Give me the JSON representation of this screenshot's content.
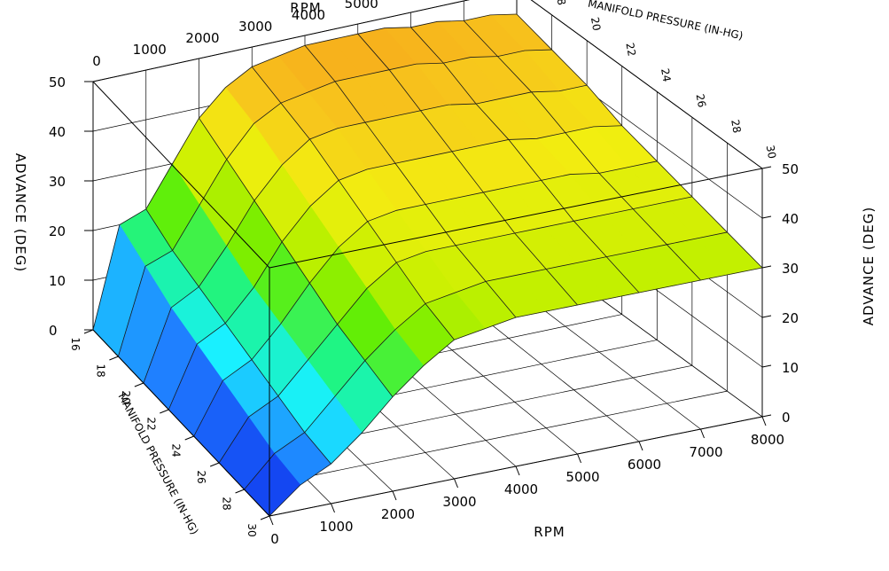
{
  "chart_data": {
    "type": "surface3d",
    "title": "",
    "x_axis": {
      "label": "RPM",
      "range": [
        0,
        8000
      ],
      "ticks": [
        "0",
        "1000",
        "2000",
        "3000",
        "4000",
        "5000",
        "6000",
        "7000",
        "8000"
      ]
    },
    "y_axis": {
      "label": "MANIFOLD PRESSURE (IN-HG)",
      "range": [
        16,
        30
      ],
      "ticks": [
        "16",
        "18",
        "20",
        "22",
        "24",
        "26",
        "28",
        "30"
      ]
    },
    "z_axis": {
      "label": "ADVANCE (DEG)",
      "range": [
        0,
        50
      ],
      "ticks": [
        "0",
        "10",
        "20",
        "30",
        "40",
        "50"
      ]
    },
    "rpm": [
      0,
      500,
      1000,
      1500,
      2000,
      2500,
      3000,
      3500,
      4000,
      4500,
      5000,
      5500,
      6000,
      6500,
      7000,
      7500,
      8000
    ],
    "map": [
      16,
      18,
      20,
      22,
      24,
      26,
      28,
      30
    ],
    "advance": [
      [
        0,
        20,
        22,
        30,
        38,
        43,
        46,
        47,
        48,
        48,
        48,
        48,
        47,
        47,
        46,
        46,
        45
      ],
      [
        0,
        17,
        19,
        27,
        35,
        41,
        44,
        45,
        46,
        46,
        46,
        46,
        45,
        45,
        44,
        44,
        43
      ],
      [
        0,
        14,
        17,
        24,
        32,
        38,
        42,
        43,
        43,
        43,
        43,
        43,
        42,
        42,
        42,
        41,
        41
      ],
      [
        0,
        12,
        15,
        21,
        29,
        35,
        39,
        40,
        40,
        40,
        40,
        40,
        40,
        39,
        39,
        39,
        38
      ],
      [
        0,
        10,
        13,
        19,
        26,
        32,
        36,
        37,
        37,
        37,
        37,
        37,
        37,
        37,
        36,
        36,
        36
      ],
      [
        0,
        8,
        11,
        17,
        23,
        29,
        33,
        34,
        34,
        34,
        34,
        34,
        34,
        34,
        34,
        34,
        34
      ],
      [
        0,
        6,
        9,
        15,
        21,
        26,
        30,
        31,
        32,
        32,
        32,
        32,
        32,
        32,
        32,
        32,
        32
      ],
      [
        0,
        5,
        8,
        13,
        19,
        24,
        28,
        29,
        30,
        30,
        30,
        30,
        30,
        30,
        30,
        30,
        30
      ]
    ],
    "colormap": [
      "#0b1fe8",
      "#1f7bff",
      "#19f0ff",
      "#1cf58a",
      "#66ee00",
      "#c7f000",
      "#f2ee10",
      "#f7c51c",
      "#f7a01c"
    ],
    "grid": true
  }
}
